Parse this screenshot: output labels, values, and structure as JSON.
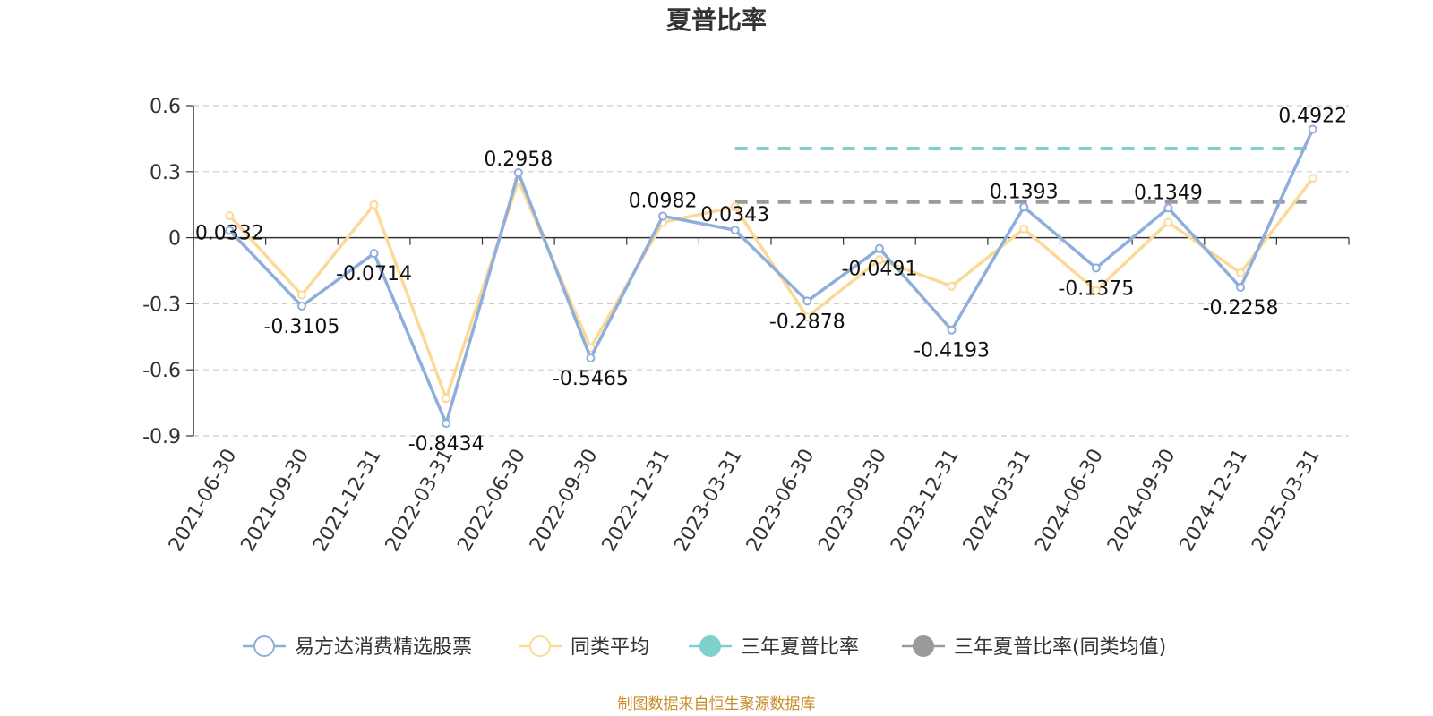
{
  "chart_data": {
    "type": "line",
    "title": "夏普比率",
    "x": [
      "2021-06-30",
      "2021-09-30",
      "2021-12-31",
      "2022-03-31",
      "2022-06-30",
      "2022-09-30",
      "2022-12-31",
      "2023-03-31",
      "2023-06-30",
      "2023-09-30",
      "2023-12-31",
      "2024-03-31",
      "2024-06-30",
      "2024-09-30",
      "2024-12-31",
      "2025-03-31"
    ],
    "ylim": [
      -0.9,
      0.6
    ],
    "yticks": [
      "0.6",
      "0.3",
      "0",
      "-0.3",
      "-0.6",
      "-0.9"
    ],
    "ytick_values": [
      0.6,
      0.3,
      0,
      -0.3,
      -0.6,
      -0.9
    ],
    "grid": true,
    "legend_position": "bottom",
    "series": [
      {
        "name": "易方达消费精选股票",
        "color": "#8eaedb",
        "values": [
          0.0332,
          -0.3105,
          -0.0714,
          -0.8434,
          0.2958,
          -0.5465,
          0.0982,
          0.0343,
          -0.2878,
          -0.0491,
          -0.4193,
          0.1393,
          -0.1375,
          0.1349,
          -0.2258,
          0.4922
        ],
        "labels": [
          "0.0332",
          "-0.3105",
          "-0.0714",
          "-0.8434",
          "0.2958",
          "-0.5465",
          "0.0982",
          "0.0343",
          "-0.2878",
          "-0.0491",
          "-0.4193",
          "0.1393",
          "-0.1375",
          "0.1349",
          "-0.2258",
          "0.4922"
        ]
      },
      {
        "name": "同类平均",
        "color": "#fcd997",
        "values": [
          0.1,
          -0.26,
          0.15,
          -0.73,
          0.26,
          -0.5,
          0.07,
          0.14,
          -0.36,
          -0.1,
          -0.22,
          0.04,
          -0.24,
          0.07,
          -0.16,
          0.27
        ]
      },
      {
        "name": "三年夏普比率",
        "color": "#7fd0cf",
        "style": "dashed",
        "x_start": "2023-03-31",
        "x_end": "2025-03-31",
        "value": 0.405
      },
      {
        "name": "三年夏普比率(同类均值)",
        "color": "#9a9a9a",
        "style": "dashed",
        "x_start": "2023-03-31",
        "x_end": "2025-03-31",
        "value": 0.162
      }
    ],
    "source": "制图数据来自恒生聚源数据库"
  }
}
